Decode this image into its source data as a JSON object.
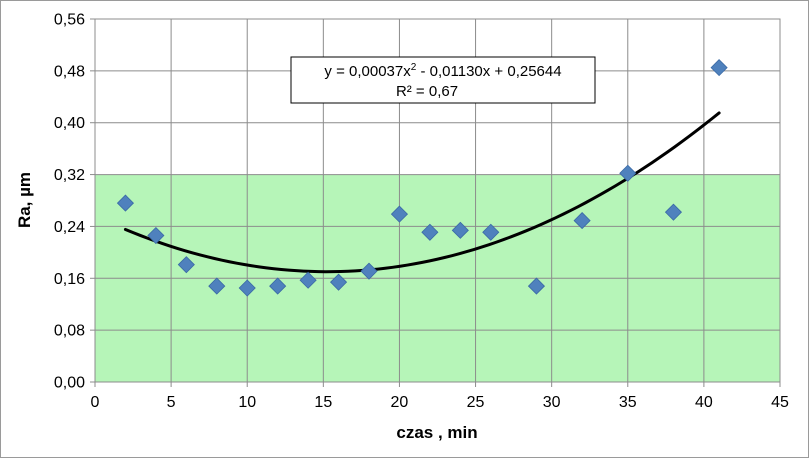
{
  "chart_data": {
    "type": "scatter",
    "xlabel": "czas , min",
    "ylabel": "Ra, µm",
    "xlim": [
      0,
      45
    ],
    "ylim": [
      0,
      0.56
    ],
    "x_ticks": [
      0,
      5,
      10,
      15,
      20,
      25,
      30,
      35,
      40,
      45
    ],
    "x_tick_labels": [
      "0",
      "5",
      "10",
      "15",
      "20",
      "25",
      "30",
      "35",
      "40",
      "45"
    ],
    "y_ticks": [
      0,
      0.08,
      0.16,
      0.24,
      0.32,
      0.4,
      0.48,
      0.56
    ],
    "y_tick_labels": [
      "0,00",
      "0,08",
      "0,16",
      "0,24",
      "0,32",
      "0,40",
      "0,48",
      "0,56"
    ],
    "grid": true,
    "legend": "none",
    "marker": "diamond",
    "tolerance_band": {
      "y_range": [
        0,
        0.32
      ],
      "color": "#b6f5b8"
    },
    "series": [
      {
        "x": [
          2,
          4,
          6,
          8,
          10,
          12,
          14,
          16,
          18,
          20,
          22,
          24,
          26,
          29,
          32,
          35,
          38,
          41
        ],
        "y": [
          0.276,
          0.226,
          0.181,
          0.148,
          0.145,
          0.148,
          0.157,
          0.154,
          0.171,
          0.259,
          0.231,
          0.234,
          0.231,
          0.148,
          0.249,
          0.322,
          0.262,
          0.485
        ],
        "color": "#4f81bd"
      }
    ],
    "trendline": {
      "type": "polynomial",
      "order": 2,
      "coefficients": [
        0.00037,
        -0.0113,
        0.25644
      ],
      "x_range": [
        2,
        41
      ],
      "color": "#000000",
      "equation_line1_prefix": "y = 0,00037x",
      "equation_line1_sup": "2",
      "equation_line1_suffix": " - 0,01130x + 0,25644",
      "equation_line2": "R² = 0,67"
    }
  }
}
